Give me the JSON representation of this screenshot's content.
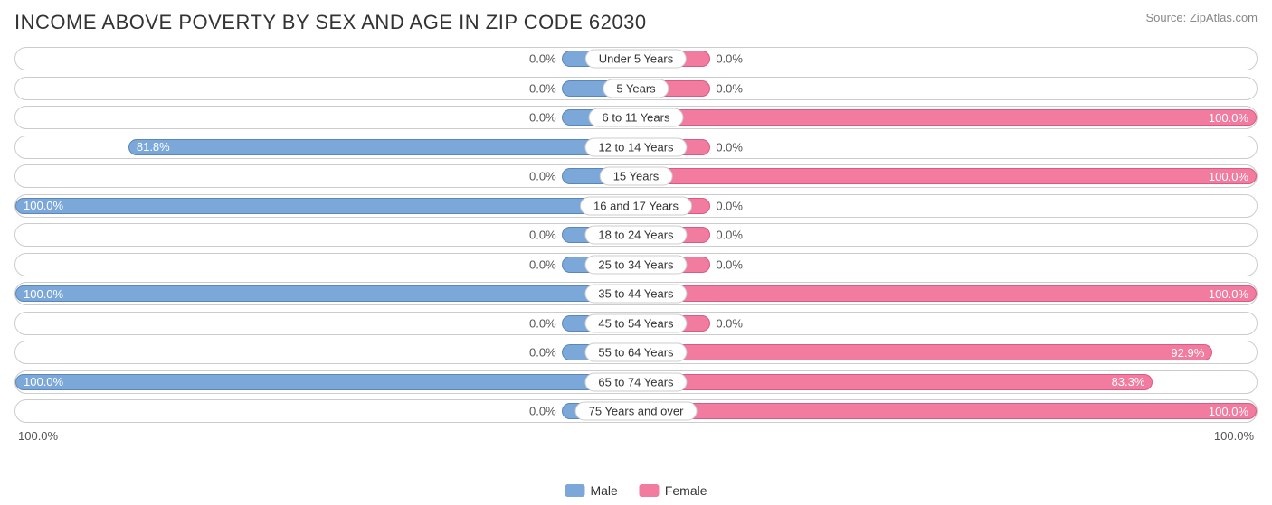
{
  "title": "INCOME ABOVE POVERTY BY SEX AND AGE IN ZIP CODE 62030",
  "source": "Source: ZipAtlas.com",
  "chart": {
    "type": "diverging-bar",
    "min_bar_pct": 12,
    "colors": {
      "male_fill": "#7ba7d9",
      "male_border": "#5a87ba",
      "female_fill": "#f27ba0",
      "female_border": "#d95a82",
      "row_border": "#cccccc",
      "background": "#ffffff",
      "text": "#333333",
      "value_text": "#555555",
      "source_text": "#888888"
    },
    "axis": {
      "left": "100.0%",
      "right": "100.0%"
    },
    "legend": [
      {
        "label": "Male",
        "color": "#7ba7d9"
      },
      {
        "label": "Female",
        "color": "#f27ba0"
      }
    ],
    "rows": [
      {
        "category": "Under 5 Years",
        "male": 0.0,
        "female": 0.0,
        "male_label": "0.0%",
        "female_label": "0.0%"
      },
      {
        "category": "5 Years",
        "male": 0.0,
        "female": 0.0,
        "male_label": "0.0%",
        "female_label": "0.0%"
      },
      {
        "category": "6 to 11 Years",
        "male": 0.0,
        "female": 100.0,
        "male_label": "0.0%",
        "female_label": "100.0%"
      },
      {
        "category": "12 to 14 Years",
        "male": 81.8,
        "female": 0.0,
        "male_label": "81.8%",
        "female_label": "0.0%"
      },
      {
        "category": "15 Years",
        "male": 0.0,
        "female": 100.0,
        "male_label": "0.0%",
        "female_label": "100.0%"
      },
      {
        "category": "16 and 17 Years",
        "male": 100.0,
        "female": 0.0,
        "male_label": "100.0%",
        "female_label": "0.0%"
      },
      {
        "category": "18 to 24 Years",
        "male": 0.0,
        "female": 0.0,
        "male_label": "0.0%",
        "female_label": "0.0%"
      },
      {
        "category": "25 to 34 Years",
        "male": 0.0,
        "female": 0.0,
        "male_label": "0.0%",
        "female_label": "0.0%"
      },
      {
        "category": "35 to 44 Years",
        "male": 100.0,
        "female": 100.0,
        "male_label": "100.0%",
        "female_label": "100.0%"
      },
      {
        "category": "45 to 54 Years",
        "male": 0.0,
        "female": 0.0,
        "male_label": "0.0%",
        "female_label": "0.0%"
      },
      {
        "category": "55 to 64 Years",
        "male": 0.0,
        "female": 92.9,
        "male_label": "0.0%",
        "female_label": "92.9%"
      },
      {
        "category": "65 to 74 Years",
        "male": 100.0,
        "female": 83.3,
        "male_label": "100.0%",
        "female_label": "83.3%"
      },
      {
        "category": "75 Years and over",
        "male": 0.0,
        "female": 100.0,
        "male_label": "0.0%",
        "female_label": "100.0%"
      }
    ]
  }
}
